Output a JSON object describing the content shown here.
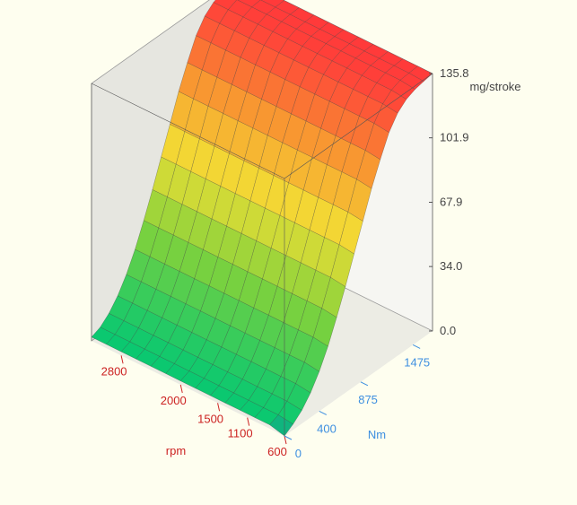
{
  "chart_data": {
    "type": "surface",
    "title": "",
    "xlabel": "rpm",
    "ylabel": "Nm",
    "zlabel": "mg/stroke",
    "x_ticks": [
      "600",
      "1100",
      "1500",
      "2000",
      "2800"
    ],
    "y_ticks": [
      "0",
      "400",
      "875",
      "1475"
    ],
    "z_ticks": [
      "0.0",
      "34.0",
      "67.9",
      "101.9",
      "135.8"
    ],
    "x_range": [
      600,
      3200
    ],
    "y_range": [
      0,
      1700
    ],
    "z_range": [
      0,
      135.8
    ],
    "grid": true,
    "colormap": [
      "#2b59c3",
      "#0ac870",
      "#7fd23c",
      "#f3dd35",
      "#f7a030",
      "#ff3a3a"
    ],
    "surface": {
      "description_rows": "rows = rpm samples (600 to 3200), columns = torque samples (0 to 1700)",
      "rpm": [
        600,
        800,
        1000,
        1200,
        1400,
        1600,
        1800,
        2000,
        2200,
        2400,
        2600,
        2800,
        3000,
        3200
      ],
      "nm": [
        0,
        100,
        200,
        300,
        400,
        500,
        600,
        700,
        800,
        900,
        1000,
        1100,
        1200,
        1300,
        1400,
        1500,
        1600,
        1700
      ],
      "mg_stroke": [
        [
          0,
          3,
          7,
          13,
          21,
          31,
          43,
          56,
          70,
          84,
          98,
          110,
          121,
          128,
          132,
          134,
          135,
          135.8
        ],
        [
          2,
          4,
          8,
          14,
          22,
          32,
          44,
          57,
          71,
          85,
          99,
          111,
          122,
          129,
          133,
          135,
          135.5,
          135.8
        ],
        [
          2,
          4,
          8,
          14,
          22,
          32,
          44,
          57,
          71,
          85,
          99,
          111,
          122,
          129,
          133,
          135,
          135.5,
          135.8
        ],
        [
          2,
          4,
          8,
          14,
          22,
          32,
          44,
          57,
          71,
          85,
          99,
          111,
          122,
          129,
          133,
          135,
          135.5,
          135.8
        ],
        [
          2,
          4,
          8,
          14,
          22,
          32,
          44,
          57,
          71,
          85,
          99,
          111,
          122,
          129,
          133,
          135,
          135.5,
          135.8
        ],
        [
          2,
          4,
          8,
          14,
          22,
          32,
          44,
          57,
          71,
          85,
          99,
          111,
          122,
          129,
          133,
          135,
          135.5,
          135.8
        ],
        [
          2,
          4,
          8,
          14,
          22,
          32,
          44,
          57,
          71,
          85,
          99,
          111,
          122,
          129,
          133,
          135,
          135.5,
          135.8
        ],
        [
          2,
          4,
          8,
          14,
          22,
          32,
          44,
          57,
          71,
          85,
          99,
          111,
          122,
          129,
          133,
          135,
          135.5,
          135.8
        ],
        [
          2,
          4,
          8,
          14,
          22,
          32,
          44,
          57,
          71,
          85,
          99,
          111,
          122,
          129,
          133,
          135,
          135.5,
          135.8
        ],
        [
          2,
          4,
          8,
          14,
          22,
          32,
          44,
          57,
          71,
          85,
          99,
          111,
          122,
          129,
          133,
          135,
          135.5,
          135.8
        ],
        [
          2,
          4,
          8,
          14,
          22,
          32,
          44,
          57,
          71,
          85,
          99,
          111,
          122,
          129,
          133,
          135,
          135.5,
          135.8
        ],
        [
          2,
          4,
          8,
          14,
          22,
          32,
          44,
          57,
          71,
          85,
          99,
          111,
          122,
          129,
          133,
          135,
          135.5,
          135.8
        ],
        [
          2,
          4,
          8,
          14,
          22,
          32,
          44,
          57,
          71,
          85,
          99,
          111,
          122,
          129,
          133,
          135,
          135.5,
          135.8
        ],
        [
          2,
          4,
          8,
          14,
          22,
          32,
          44,
          57,
          71,
          85,
          99,
          111,
          122,
          129,
          133,
          135,
          135.5,
          135.8
        ]
      ]
    }
  }
}
